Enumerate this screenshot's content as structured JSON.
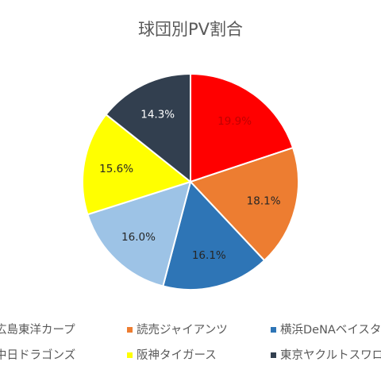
{
  "chart_data": {
    "type": "pie",
    "title": "球団別PV割合",
    "slices": [
      {
        "name": "広島東洋カープ",
        "value": 19.9,
        "label": "19.9%",
        "color": "#ff0000",
        "label_color": "#c00000"
      },
      {
        "name": "読売ジャイアンツ",
        "value": 18.1,
        "label": "18.1%",
        "color": "#ed7d31",
        "label_color": "#262626"
      },
      {
        "name": "横浜DeNAベイスターズ",
        "value": 16.1,
        "label": "16.1%",
        "color": "#2e75b6",
        "label_color": "#262626"
      },
      {
        "name": "中日ドラゴンズ",
        "value": 16.0,
        "label": "16.0%",
        "color": "#9dc3e6",
        "label_color": "#262626"
      },
      {
        "name": "阪神タイガース",
        "value": 15.6,
        "label": "15.6%",
        "color": "#ffff00",
        "label_color": "#262626"
      },
      {
        "name": "東京ヤクルトスワローズ",
        "value": 14.3,
        "label": "14.3%",
        "color": "#323f4f",
        "label_color": "#ffffff"
      }
    ],
    "legend_position": "bottom"
  }
}
